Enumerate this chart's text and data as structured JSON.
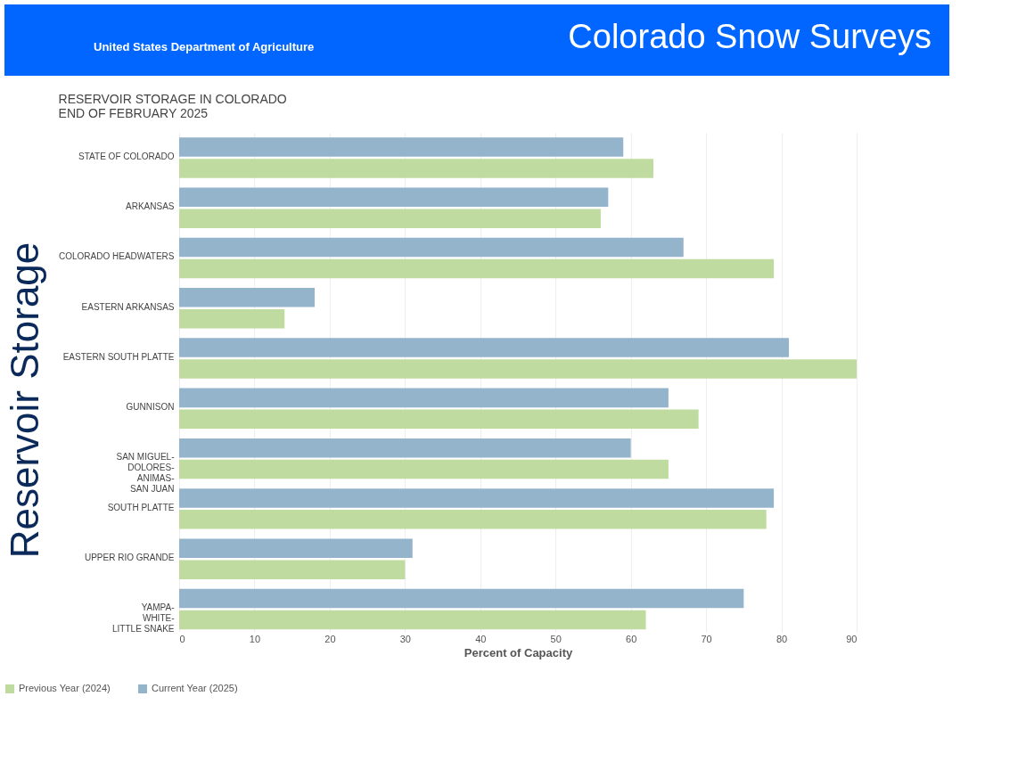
{
  "chart_data": {
    "type": "bar",
    "orientation": "horizontal",
    "title": [
      "RESERVOIR STORAGE IN COLORADO",
      "END OF FEBRUARY 2025"
    ],
    "annotations": [
      "Colorado Snow Surveys",
      "United States Department of Agriculture",
      "Reservoir Storage"
    ],
    "xlabel": "Percent of Capacity",
    "categories": [
      "STATE OF COLORADO",
      "ARKANSAS",
      "COLORADO HEADWATERS",
      "EASTERN ARKANSAS",
      "EASTERN SOUTH PLATTE",
      "GUNNISON",
      "SAN MIGUEL-\nDOLORES-\nANIMAS-\nSAN JUAN",
      "SOUTH PLATTE",
      "UPPER RIO GRANDE",
      "YAMPA-\nWHITE-\nLITTLE SNAKE"
    ],
    "series": [
      {
        "name": "Previous Year (2024)",
        "color": "#c0dba0",
        "values": [
          63,
          56,
          79,
          14,
          90,
          69,
          65,
          78,
          30,
          62
        ]
      },
      {
        "name": "Current Year (2025)",
        "color": "#94b4cc",
        "values": [
          59,
          57,
          67,
          18,
          81,
          65,
          60,
          79,
          31,
          75
        ]
      }
    ],
    "xlim": [
      0,
      90
    ],
    "xticks": [
      0,
      10,
      20,
      30,
      40,
      50,
      60,
      70,
      80,
      90
    ],
    "grid": "x",
    "legend": "bottom left"
  }
}
